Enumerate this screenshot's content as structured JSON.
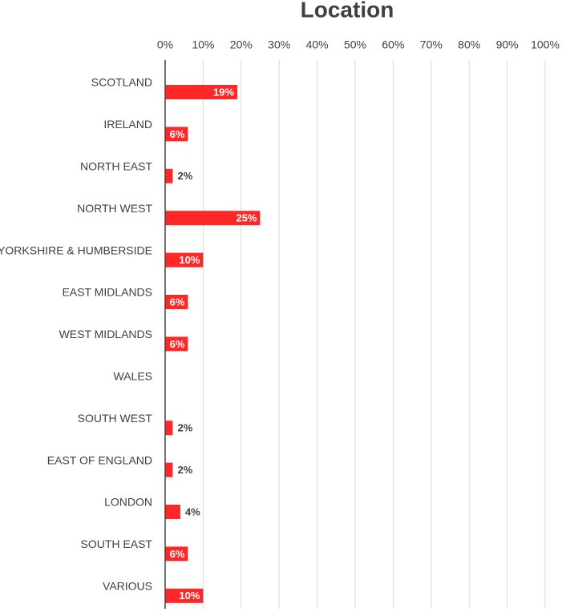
{
  "chart_data": {
    "type": "bar",
    "orientation": "horizontal",
    "title": "Location",
    "categories": [
      "SCOTLAND",
      "IRELAND",
      "NORTH EAST",
      "NORTH WEST",
      "YORKSHIRE & HUMBERSIDE",
      "EAST MIDLANDS",
      "WEST MIDLANDS",
      "WALES",
      "SOUTH WEST",
      "EAST OF ENGLAND",
      "LONDON",
      "SOUTH EAST",
      "VARIOUS"
    ],
    "values": [
      19,
      6,
      2,
      25,
      10,
      6,
      6,
      0,
      2,
      2,
      4,
      6,
      10
    ],
    "value_labels": [
      "19%",
      "6%",
      "2%",
      "25%",
      "10%",
      "6%",
      "6%",
      null,
      "2%",
      "2%",
      "4%",
      "6%",
      "10%"
    ],
    "color": "#ff2828",
    "xlim": [
      0,
      100
    ],
    "xticks": [
      {
        "value": 0,
        "label": "0%"
      },
      {
        "value": 10,
        "label": "10%"
      },
      {
        "value": 20,
        "label": "20%"
      },
      {
        "value": 30,
        "label": "30%"
      },
      {
        "value": 40,
        "label": "40%"
      },
      {
        "value": 50,
        "label": "50%"
      },
      {
        "value": 60,
        "label": "60%"
      },
      {
        "value": 70,
        "label": "70%"
      },
      {
        "value": 80,
        "label": "80%"
      },
      {
        "value": 90,
        "label": "90%"
      },
      {
        "value": 100,
        "label": "100%"
      }
    ],
    "grid": true
  }
}
